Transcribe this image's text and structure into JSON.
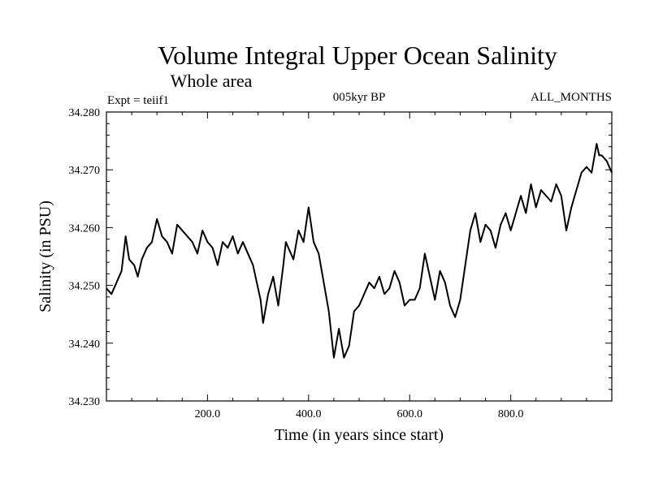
{
  "header": {
    "title": "Volume Integral Upper Ocean Salinity",
    "subtitle": "Whole area",
    "expt": "Expt = teiif1",
    "period": "005kyr BP",
    "months": "ALL_MONTHS"
  },
  "chart_data": {
    "type": "line",
    "xlabel": "Time (in years since start)",
    "ylabel": "Salinity (in PSU)",
    "xlim": [
      0,
      1000
    ],
    "ylim": [
      34.23,
      34.28
    ],
    "xticks": [
      200,
      400,
      600,
      800
    ],
    "xtick_labels": [
      "200.0",
      "400.0",
      "600.0",
      "800.0"
    ],
    "yticks": [
      34.23,
      34.24,
      34.25,
      34.26,
      34.27,
      34.28
    ],
    "ytick_labels": [
      "34.230",
      "34.240",
      "34.250",
      "34.260",
      "34.270",
      "34.280"
    ],
    "grid": false,
    "series": [
      {
        "x": [
          0,
          10,
          20,
          30,
          38,
          45,
          55,
          62,
          70,
          80,
          90,
          100,
          110,
          120,
          130,
          140,
          150,
          160,
          170,
          180,
          190,
          200,
          210,
          220,
          230,
          240,
          250,
          260,
          270,
          280,
          290,
          300,
          305,
          310,
          320,
          330,
          340,
          350,
          355,
          360,
          370,
          380,
          390,
          400,
          410,
          420,
          430,
          440,
          450,
          460,
          470,
          480,
          490,
          500,
          510,
          520,
          530,
          540,
          550,
          560,
          570,
          580,
          590,
          600,
          610,
          620,
          630,
          640,
          650,
          660,
          670,
          680,
          690,
          700,
          710,
          720,
          730,
          740,
          750,
          760,
          770,
          780,
          790,
          800,
          810,
          820,
          830,
          840,
          850,
          860,
          870,
          880,
          890,
          900,
          910,
          920,
          930,
          940,
          950,
          960,
          970,
          975,
          980,
          990,
          1000
        ],
        "values": [
          34.2495,
          34.2485,
          34.2505,
          34.2525,
          34.2585,
          34.2545,
          34.2535,
          34.2515,
          34.2545,
          34.2565,
          34.2575,
          34.2615,
          34.2585,
          34.2575,
          34.2555,
          34.2605,
          34.2595,
          34.2585,
          34.2575,
          34.2555,
          34.2595,
          34.2575,
          34.2565,
          34.2535,
          34.2575,
          34.2565,
          34.2585,
          34.2555,
          34.2575,
          34.2555,
          34.2535,
          34.2495,
          34.2475,
          34.2435,
          34.2485,
          34.2515,
          34.2465,
          34.2535,
          34.2575,
          34.2565,
          34.2545,
          34.2595,
          34.2575,
          34.2635,
          34.2575,
          34.2555,
          34.2505,
          34.2455,
          34.2375,
          34.2425,
          34.2375,
          34.2395,
          34.2455,
          34.2465,
          34.2485,
          34.2505,
          34.2495,
          34.2515,
          34.2485,
          34.2495,
          34.2525,
          34.2505,
          34.2465,
          34.2475,
          34.2475,
          34.2495,
          34.2555,
          34.2515,
          34.2475,
          34.2525,
          34.2505,
          34.2465,
          34.2445,
          34.2475,
          34.2535,
          34.2595,
          34.2625,
          34.2575,
          34.2605,
          34.2595,
          34.2565,
          34.2605,
          34.2625,
          34.2595,
          34.2625,
          34.2655,
          34.2625,
          34.2675,
          34.2635,
          34.2665,
          34.2655,
          34.2645,
          34.2675,
          34.2655,
          34.2595,
          34.2635,
          34.2665,
          34.2695,
          34.2705,
          34.2695,
          34.2745,
          34.2725,
          34.2725,
          34.2715,
          34.2695
        ]
      }
    ]
  }
}
